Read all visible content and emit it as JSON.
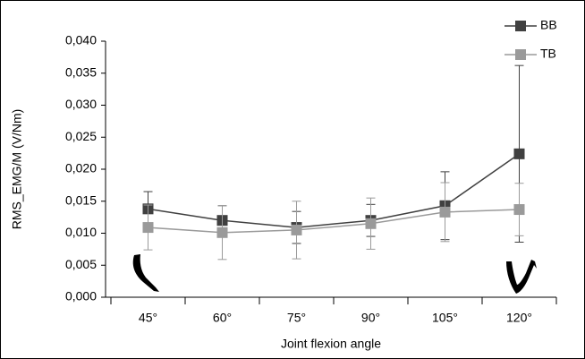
{
  "chart_data": {
    "type": "line",
    "x_label": "Joint flexion angle",
    "y_label": "RMS_EMG/M (V/Nm)",
    "categories": [
      "45°",
      "60°",
      "75°",
      "90°",
      "105°",
      "120°"
    ],
    "series": [
      {
        "name": "BB",
        "color": "#404040",
        "values": [
          0.0138,
          0.012,
          0.0109,
          0.012,
          0.0143,
          0.0224
        ],
        "errors": [
          0.0027,
          0.0023,
          0.0025,
          0.0025,
          0.0053,
          0.0138
        ]
      },
      {
        "name": "TB",
        "color": "#9a9a9a",
        "values": [
          0.0109,
          0.0101,
          0.0105,
          0.0115,
          0.0133,
          0.0137
        ],
        "errors": [
          0.0035,
          0.0042,
          0.0045,
          0.004,
          0.0046,
          0.0041
        ]
      }
    ],
    "ylim": [
      0,
      0.04
    ],
    "yticks": [
      {
        "value": 0,
        "label": "0,000"
      },
      {
        "value": 0.005,
        "label": "0,005"
      },
      {
        "value": 0.01,
        "label": "0,010"
      },
      {
        "value": 0.015,
        "label": "0,015"
      },
      {
        "value": 0.02,
        "label": "0,020"
      },
      {
        "value": 0.025,
        "label": "0,025"
      },
      {
        "value": 0.03,
        "label": "0,030"
      },
      {
        "value": 0.035,
        "label": "0,035"
      },
      {
        "value": 0.04,
        "label": "0,040"
      }
    ],
    "legend": "top-right"
  }
}
